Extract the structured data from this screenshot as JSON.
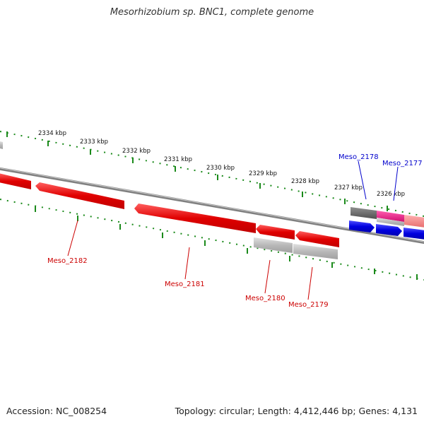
{
  "title": "Mesorhizobium sp. BNC1, complete genome",
  "footer": {
    "accession": "Accession: NC_008254",
    "summary": "Topology: circular; Length: 4,412,446 bp; Genes: 4,131"
  },
  "colors": {
    "backbone": "#808080",
    "tick": "#1a8a1a",
    "reverse_gene": "#e00000",
    "forward_gene": "#0000e0",
    "misc_gene": "#b0b0b0",
    "dark_gene": "#666666",
    "magenta_gene": "#e0208a",
    "salmon_gene": "#f08080",
    "reverse_label": "#cc0000",
    "forward_label": "#0000cc"
  },
  "ruler_labels": [
    "2334 kbp",
    "2333 kbp",
    "2332 kbp",
    "2331 kbp",
    "2330 kbp",
    "2329 kbp",
    "2328 kbp",
    "2327 kbp",
    "2326 kbp"
  ],
  "genes": [
    {
      "label": "Meso_2182",
      "strand": "reverse"
    },
    {
      "label": "Meso_2181",
      "strand": "reverse"
    },
    {
      "label": "Meso_2180",
      "strand": "reverse"
    },
    {
      "label": "Meso_2179",
      "strand": "reverse"
    },
    {
      "label": "Meso_2178",
      "strand": "forward"
    },
    {
      "label": "Meso_2177",
      "strand": "forward"
    }
  ]
}
